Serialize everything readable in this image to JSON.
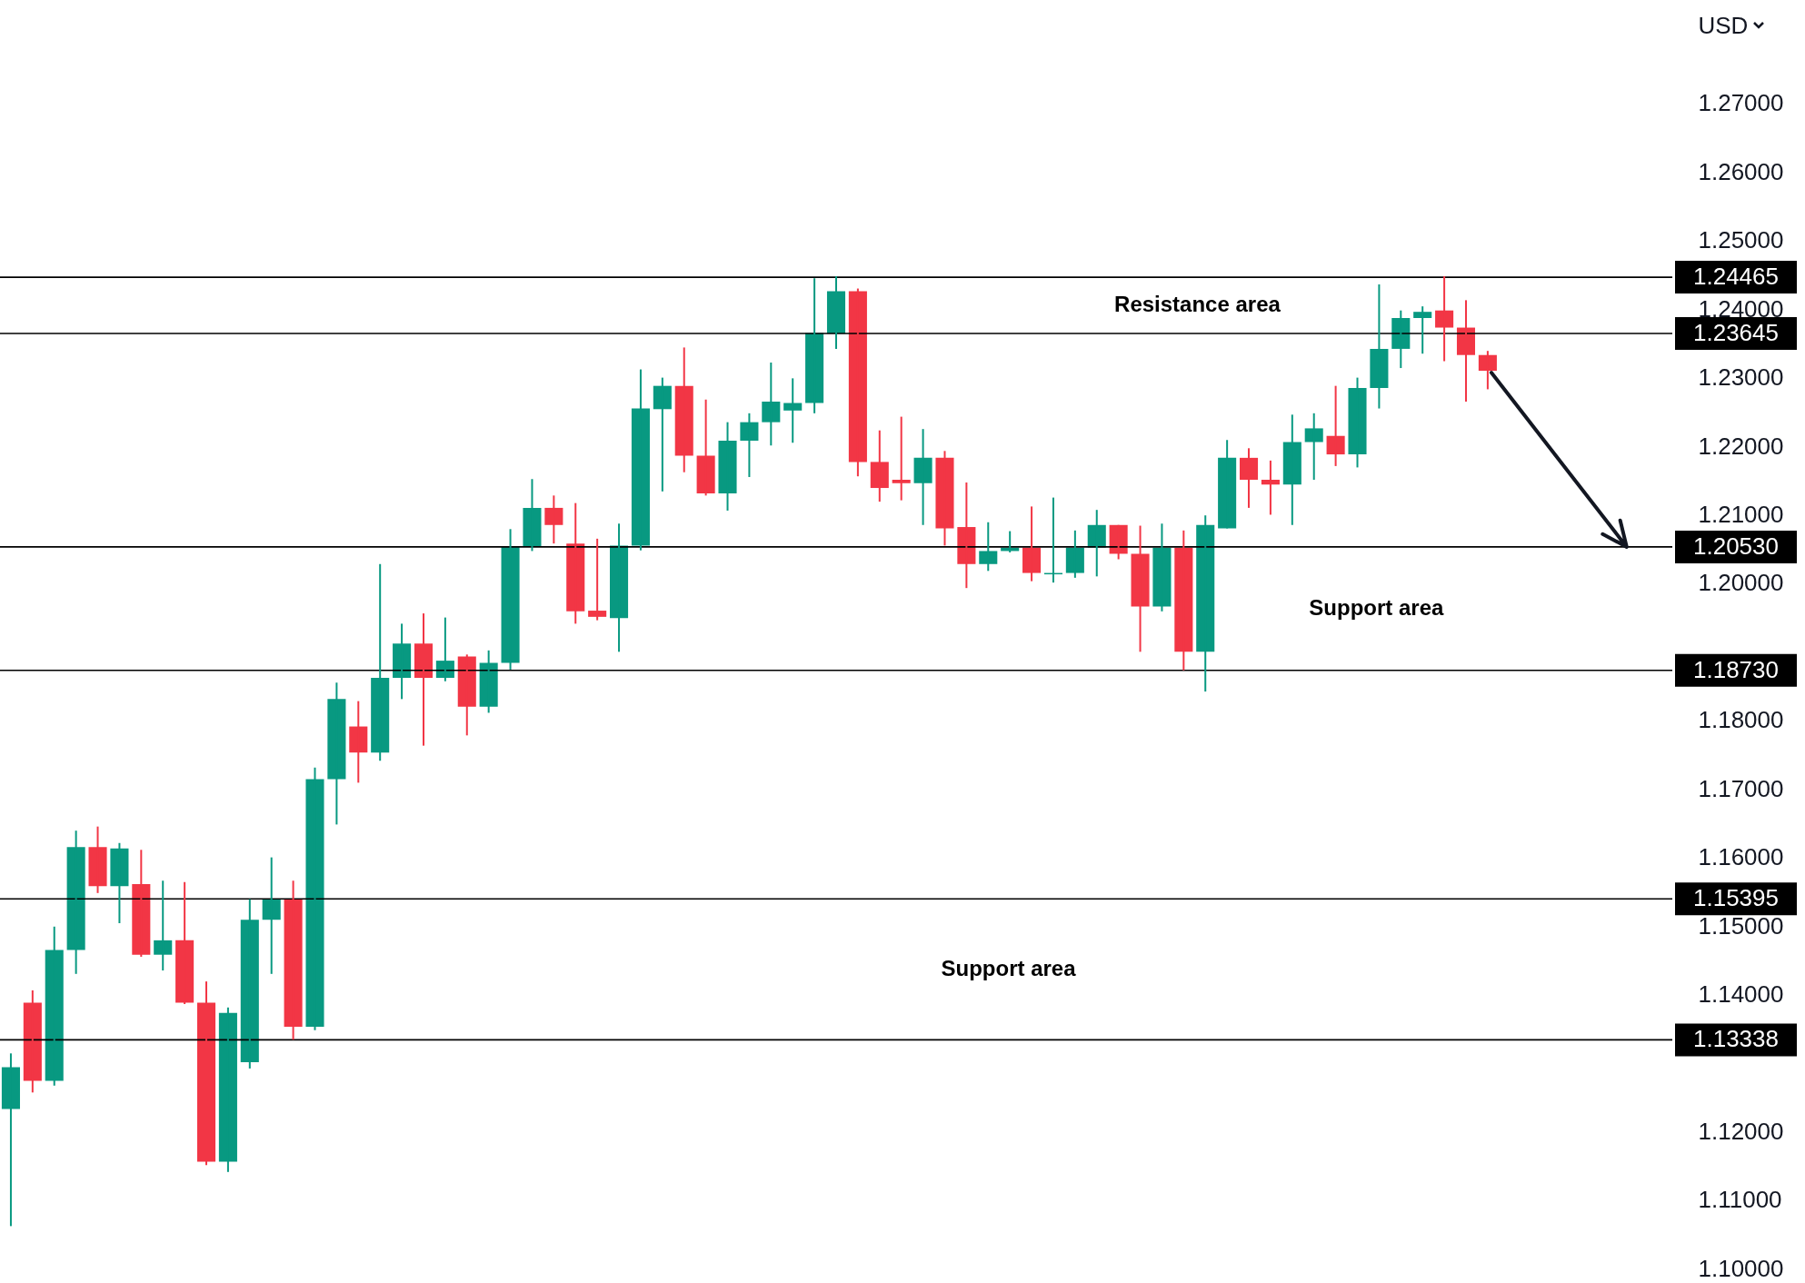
{
  "chart_data": {
    "type": "candlestick",
    "ylabel": "USD",
    "tick_labels": "y",
    "categories": [
      null,
      null,
      null,
      null,
      null,
      null,
      null,
      null,
      null,
      null,
      null,
      null,
      null,
      null,
      null,
      null,
      null,
      null,
      null,
      null,
      null,
      null,
      null,
      null,
      null,
      null,
      null,
      null,
      null,
      null,
      null,
      null,
      null,
      null,
      null,
      null,
      null,
      null,
      null,
      null,
      null,
      null,
      null,
      null,
      null,
      null,
      null,
      null,
      null,
      null,
      null,
      null,
      null,
      null,
      null,
      null,
      null,
      null,
      null,
      null,
      null,
      null,
      null,
      null,
      null,
      null,
      null,
      null,
      null,
      null,
      null,
      null,
      null,
      null,
      null,
      null,
      null
    ],
    "ohlc": [
      [
        1.1233,
        1.1314,
        1.1062,
        1.1294
      ],
      [
        1.1388,
        1.1406,
        1.1257,
        1.1274
      ],
      [
        1.1274,
        1.1499,
        1.1267,
        1.1465
      ],
      [
        1.1465,
        1.1639,
        1.143,
        1.1615
      ],
      [
        1.1615,
        1.1645,
        1.1548,
        1.1558
      ],
      [
        1.1558,
        1.1621,
        1.1504,
        1.1613
      ],
      [
        1.1561,
        1.1611,
        1.1455,
        1.1458
      ],
      [
        1.1458,
        1.1566,
        1.1435,
        1.1479
      ],
      [
        1.1479,
        1.1564,
        1.1386,
        1.1388
      ],
      [
        1.1388,
        1.1419,
        1.1151,
        1.1156
      ],
      [
        1.1156,
        1.1381,
        1.1141,
        1.1373
      ],
      [
        1.1301,
        1.1539,
        1.1292,
        1.1509
      ],
      [
        1.1509,
        1.16,
        1.143,
        1.1539
      ],
      [
        1.1539,
        1.1566,
        1.1334,
        1.1353
      ],
      [
        1.1353,
        1.1731,
        1.1348,
        1.1714
      ],
      [
        1.1714,
        1.1855,
        1.1648,
        1.1831
      ],
      [
        1.1791,
        1.1828,
        1.1709,
        1.1753
      ],
      [
        1.1753,
        1.2028,
        1.1741,
        1.1862
      ],
      [
        1.1862,
        1.1941,
        1.1831,
        1.1912
      ],
      [
        1.1912,
        1.1956,
        1.1763,
        1.1862
      ],
      [
        1.1862,
        1.195,
        1.1857,
        1.1887
      ],
      [
        1.1893,
        1.1896,
        1.1778,
        1.182
      ],
      [
        1.182,
        1.1902,
        1.1811,
        1.1884
      ],
      [
        1.1884,
        1.2079,
        1.1874,
        1.2053
      ],
      [
        1.2053,
        1.2152,
        1.2047,
        1.211
      ],
      [
        1.211,
        1.2128,
        1.2058,
        1.2085
      ],
      [
        1.2058,
        1.2117,
        1.1941,
        1.1959
      ],
      [
        1.196,
        1.2065,
        1.1946,
        1.1951
      ],
      [
        1.1949,
        1.2087,
        1.19,
        1.2055
      ],
      [
        1.2055,
        1.2312,
        1.2048,
        1.2255
      ],
      [
        1.2254,
        1.23,
        1.2134,
        1.2288
      ],
      [
        1.2288,
        1.2344,
        1.2162,
        1.2186
      ],
      [
        1.2186,
        1.2268,
        1.2128,
        1.2131
      ],
      [
        1.2131,
        1.2235,
        1.2106,
        1.2208
      ],
      [
        1.2208,
        1.2248,
        1.2155,
        1.2235
      ],
      [
        1.2235,
        1.2322,
        1.2201,
        1.2265
      ],
      [
        1.2252,
        1.2299,
        1.2205,
        1.2263
      ],
      [
        1.2263,
        1.2445,
        1.2248,
        1.2365
      ],
      [
        1.2364,
        1.2448,
        1.2342,
        1.2426
      ],
      [
        1.2426,
        1.243,
        1.2156,
        1.2177
      ],
      [
        1.2177,
        1.2223,
        1.2119,
        1.2139
      ],
      [
        1.2151,
        1.2243,
        1.2121,
        1.2146
      ],
      [
        1.2146,
        1.2225,
        1.2085,
        1.2183
      ],
      [
        1.2183,
        1.2193,
        1.2055,
        1.208
      ],
      [
        1.2082,
        1.2147,
        1.1993,
        1.2028
      ],
      [
        1.2028,
        1.2089,
        1.2018,
        1.2047
      ],
      [
        1.2047,
        1.2076,
        1.2045,
        1.2052
      ],
      [
        1.2052,
        1.2112,
        1.2003,
        1.2015
      ],
      [
        1.2013,
        1.2125,
        1.2001,
        1.2015
      ],
      [
        1.2015,
        1.2077,
        1.2008,
        1.2052
      ],
      [
        1.2052,
        1.2107,
        1.201,
        1.2085
      ],
      [
        1.2085,
        1.2085,
        1.2035,
        1.2043
      ],
      [
        1.2043,
        1.2084,
        1.19,
        1.1966
      ],
      [
        1.1966,
        1.2087,
        1.1959,
        1.2052
      ],
      [
        1.2052,
        1.2077,
        1.1873,
        1.19
      ],
      [
        1.19,
        1.2099,
        1.1842,
        1.2085
      ],
      [
        1.208,
        1.2209,
        1.208,
        1.2183
      ],
      [
        1.2183,
        1.2197,
        1.211,
        1.2151
      ],
      [
        1.2151,
        1.2179,
        1.21,
        1.2144
      ],
      [
        1.2144,
        1.2246,
        1.2085,
        1.2206
      ],
      [
        1.2206,
        1.2248,
        1.2151,
        1.2226
      ],
      [
        1.2215,
        1.2288,
        1.2171,
        1.2188
      ],
      [
        1.2188,
        1.23,
        1.2169,
        1.2285
      ],
      [
        1.2285,
        1.2436,
        1.2255,
        1.2342
      ],
      [
        1.2342,
        1.2398,
        1.2314,
        1.2387
      ],
      [
        1.2387,
        1.2404,
        1.2335,
        1.2396
      ],
      [
        1.2398,
        1.2448,
        1.2324,
        1.2373
      ],
      [
        1.2373,
        1.2413,
        1.2265,
        1.2333
      ],
      [
        1.2333,
        1.2339,
        1.2283,
        1.231
      ],
      null,
      null,
      null,
      null,
      null,
      null,
      null,
      null
    ],
    "colors": [
      "#089981",
      "#f23645",
      "#089981",
      "#089981",
      "#f23645",
      "#089981",
      "#f23645",
      "#089981",
      "#f23645",
      "#f23645",
      "#089981",
      "#089981",
      "#089981",
      "#f23645",
      "#089981",
      "#089981",
      "#f23645",
      "#089981",
      "#089981",
      "#f23645",
      "#089981",
      "#f23645",
      "#089981",
      "#089981",
      "#089981",
      "#f23645",
      "#f23645",
      "#f23645",
      "#089981",
      "#089981",
      "#089981",
      "#f23645",
      "#f23645",
      "#089981",
      "#089981",
      "#089981",
      "#089981",
      "#089981",
      "#089981",
      "#f23645",
      "#f23645",
      "#f23645",
      "#089981",
      "#f23645",
      "#f23645",
      "#089981",
      "#089981",
      "#f23645",
      "#089981",
      "#089981",
      "#089981",
      "#f23645",
      "#f23645",
      "#089981",
      "#f23645",
      "#089981",
      "#089981",
      "#f23645",
      "#f23645",
      "#089981",
      "#089981",
      "#f23645",
      "#089981",
      "#089981",
      "#089981",
      "#089981",
      "#f23645",
      "#f23645",
      "#f23645",
      null,
      null,
      null,
      null,
      null,
      null,
      null,
      null
    ],
    "ylim": [
      1.0979,
      1.2851
    ],
    "yticks": [
      {
        "value": 1.1,
        "label": "1.10000"
      },
      {
        "value": 1.11,
        "label": "1.11000"
      },
      {
        "value": 1.12,
        "label": "1.12000"
      },
      {
        "value": 1.14,
        "label": "1.14000"
      },
      {
        "value": 1.15,
        "label": "1.15000"
      },
      {
        "value": 1.16,
        "label": "1.16000"
      },
      {
        "value": 1.17,
        "label": "1.17000"
      },
      {
        "value": 1.18,
        "label": "1.18000"
      },
      {
        "value": 1.2,
        "label": "1.20000"
      },
      {
        "value": 1.21,
        "label": "1.21000"
      },
      {
        "value": 1.22,
        "label": "1.22000"
      },
      {
        "value": 1.23,
        "label": "1.23000"
      },
      {
        "value": 1.24,
        "label": "1.24000"
      },
      {
        "value": 1.25,
        "label": "1.25000"
      },
      {
        "value": 1.26,
        "label": "1.26000"
      },
      {
        "value": 1.27,
        "label": "1.27000"
      }
    ],
    "ref_lines": [
      {
        "axis": "y",
        "value": 1.24465,
        "label": "1.24465",
        "color": "#000000"
      },
      {
        "axis": "y",
        "value": 1.23645,
        "label": "1.23645",
        "color": "#000000"
      },
      {
        "axis": "y",
        "value": 1.2053,
        "label": "1.20530",
        "color": "#000000"
      },
      {
        "axis": "y",
        "value": 1.1873,
        "label": "1.18730",
        "color": "#000000"
      },
      {
        "axis": "y",
        "value": 1.15395,
        "label": "1.15395",
        "color": "#000000"
      },
      {
        "axis": "y",
        "value": 1.13338,
        "label": "1.13338",
        "color": "#000000"
      }
    ],
    "annotations": [
      "Resistance area",
      "Support area",
      "Support area"
    ]
  }
}
